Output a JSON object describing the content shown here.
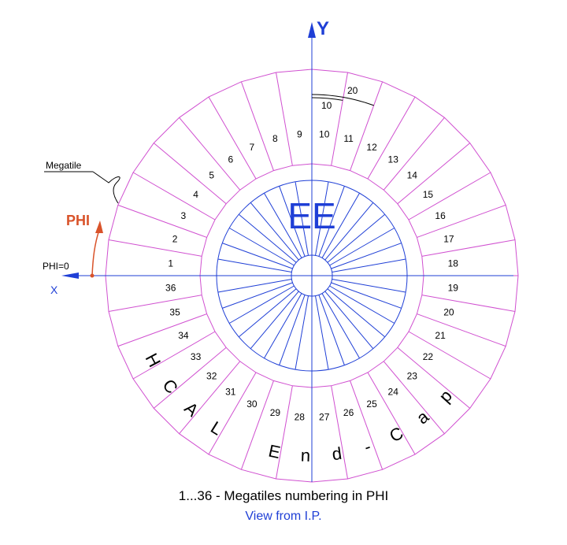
{
  "axes": {
    "y_label": "Y",
    "x_label": "X"
  },
  "megatile_label": "Megatile",
  "phi_label": "PHI",
  "phi_zero_label": "PHI=0",
  "ee_label": "EE",
  "dimension_10_label": "10",
  "dimension_20_label": "20",
  "tile_numbers": [
    "1",
    "2",
    "3",
    "4",
    "5",
    "6",
    "7",
    "8",
    "9",
    "10",
    "11",
    "12",
    "13",
    "14",
    "15",
    "16",
    "17",
    "18",
    "19",
    "20",
    "21",
    "22",
    "23",
    "24",
    "25",
    "26",
    "27",
    "28",
    "29",
    "30",
    "31",
    "32",
    "33",
    "34",
    "35",
    "36"
  ],
  "hcal_letters": [
    "H",
    "C",
    "A",
    "L",
    "E",
    "n",
    "d",
    "-",
    "C",
    "a",
    "p"
  ],
  "caption_main": "1...36 - Megatiles numbering in PHI",
  "caption_sub": "View from I.P.",
  "colors": {
    "ring": "#d050d0",
    "blue": "#1f3fd6",
    "phi": "#d9532a",
    "ink": "#000000"
  }
}
